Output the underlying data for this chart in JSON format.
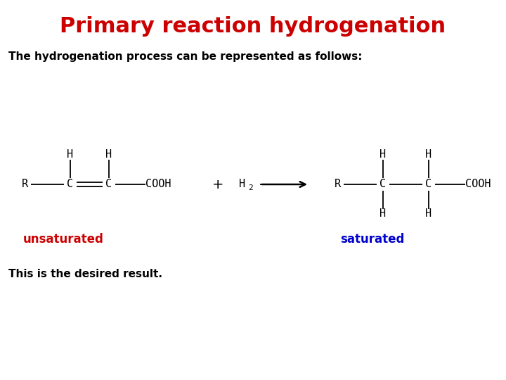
{
  "title": "Primary reaction hydrogenation",
  "title_color": "#cc0000",
  "title_fontsize": 22,
  "subtitle": "The hydrogenation process can be represented as follows:",
  "subtitle_fontsize": 11,
  "footer": "This is the desired result.",
  "footer_fontsize": 11,
  "unsaturated_label": "unsaturated",
  "saturated_label": "saturated",
  "label_color_unsaturated": "#cc0000",
  "label_color_saturated": "#0000cc",
  "label_fontsize": 12,
  "bg_color": "#ffffff",
  "chem_fontsize": 11,
  "chem_color": "#000000"
}
